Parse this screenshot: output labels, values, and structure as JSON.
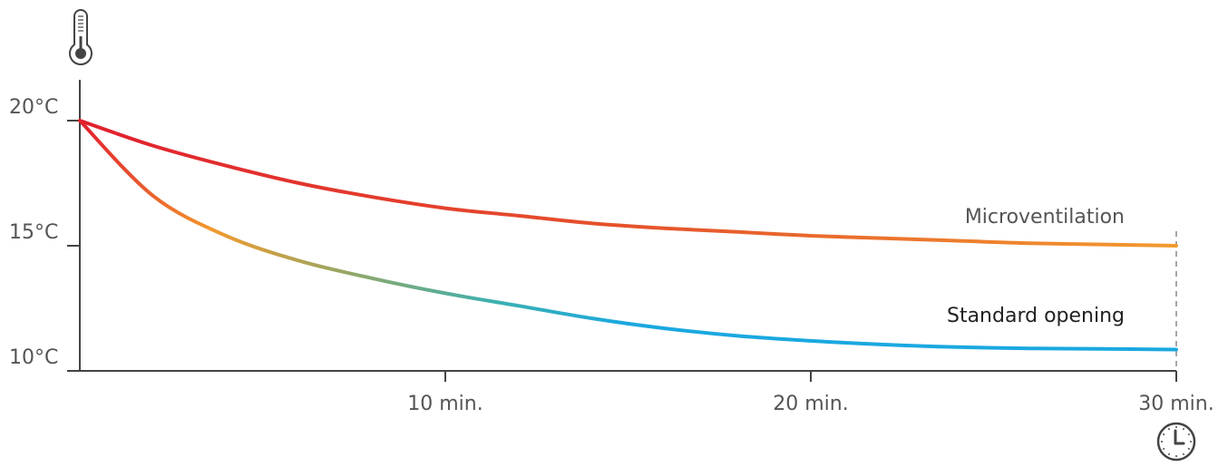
{
  "chart_data": {
    "type": "line",
    "title": "",
    "xlabel": "",
    "ylabel": "",
    "xlim": [
      0,
      30
    ],
    "ylim": [
      10,
      21.5
    ],
    "x_ticks": [
      {
        "value": 10,
        "label": "10 min."
      },
      {
        "value": 20,
        "label": "20 min."
      },
      {
        "value": 30,
        "label": "30 min."
      }
    ],
    "y_ticks": [
      {
        "value": 10,
        "label": "10°C"
      },
      {
        "value": 15,
        "label": "15°C"
      },
      {
        "value": 20,
        "label": "20°C"
      }
    ],
    "grid": false,
    "series": [
      {
        "name": "Microventilation",
        "label_color": "#555555",
        "color_start": "#e0202e",
        "color_end": "#f29a2e",
        "x": [
          0,
          2,
          4,
          6,
          8,
          10,
          12,
          14,
          16,
          18,
          20,
          22,
          24,
          26,
          28,
          30
        ],
        "values": [
          20.0,
          19.0,
          18.2,
          17.5,
          16.95,
          16.5,
          16.2,
          15.9,
          15.7,
          15.55,
          15.4,
          15.3,
          15.2,
          15.1,
          15.05,
          15.0
        ]
      },
      {
        "name": "Standard opening",
        "label_color": "#222222",
        "color_start": "#e0202e",
        "color_mid": "#f29a2e",
        "color_mid2": "#8fa86a",
        "color_end": "#1aa8e0",
        "x": [
          0,
          2,
          4,
          6,
          8,
          10,
          12,
          14,
          16,
          18,
          20,
          22,
          24,
          26,
          28,
          30
        ],
        "values": [
          20.0,
          17.0,
          15.4,
          14.4,
          13.7,
          13.1,
          12.6,
          12.1,
          11.7,
          11.4,
          11.2,
          11.05,
          10.95,
          10.9,
          10.88,
          10.85
        ]
      }
    ],
    "icons": {
      "y_axis": "thermometer-icon",
      "x_axis": "clock-icon"
    },
    "colors": {
      "axis": "#444444",
      "dashed_marker": "#888888"
    }
  }
}
